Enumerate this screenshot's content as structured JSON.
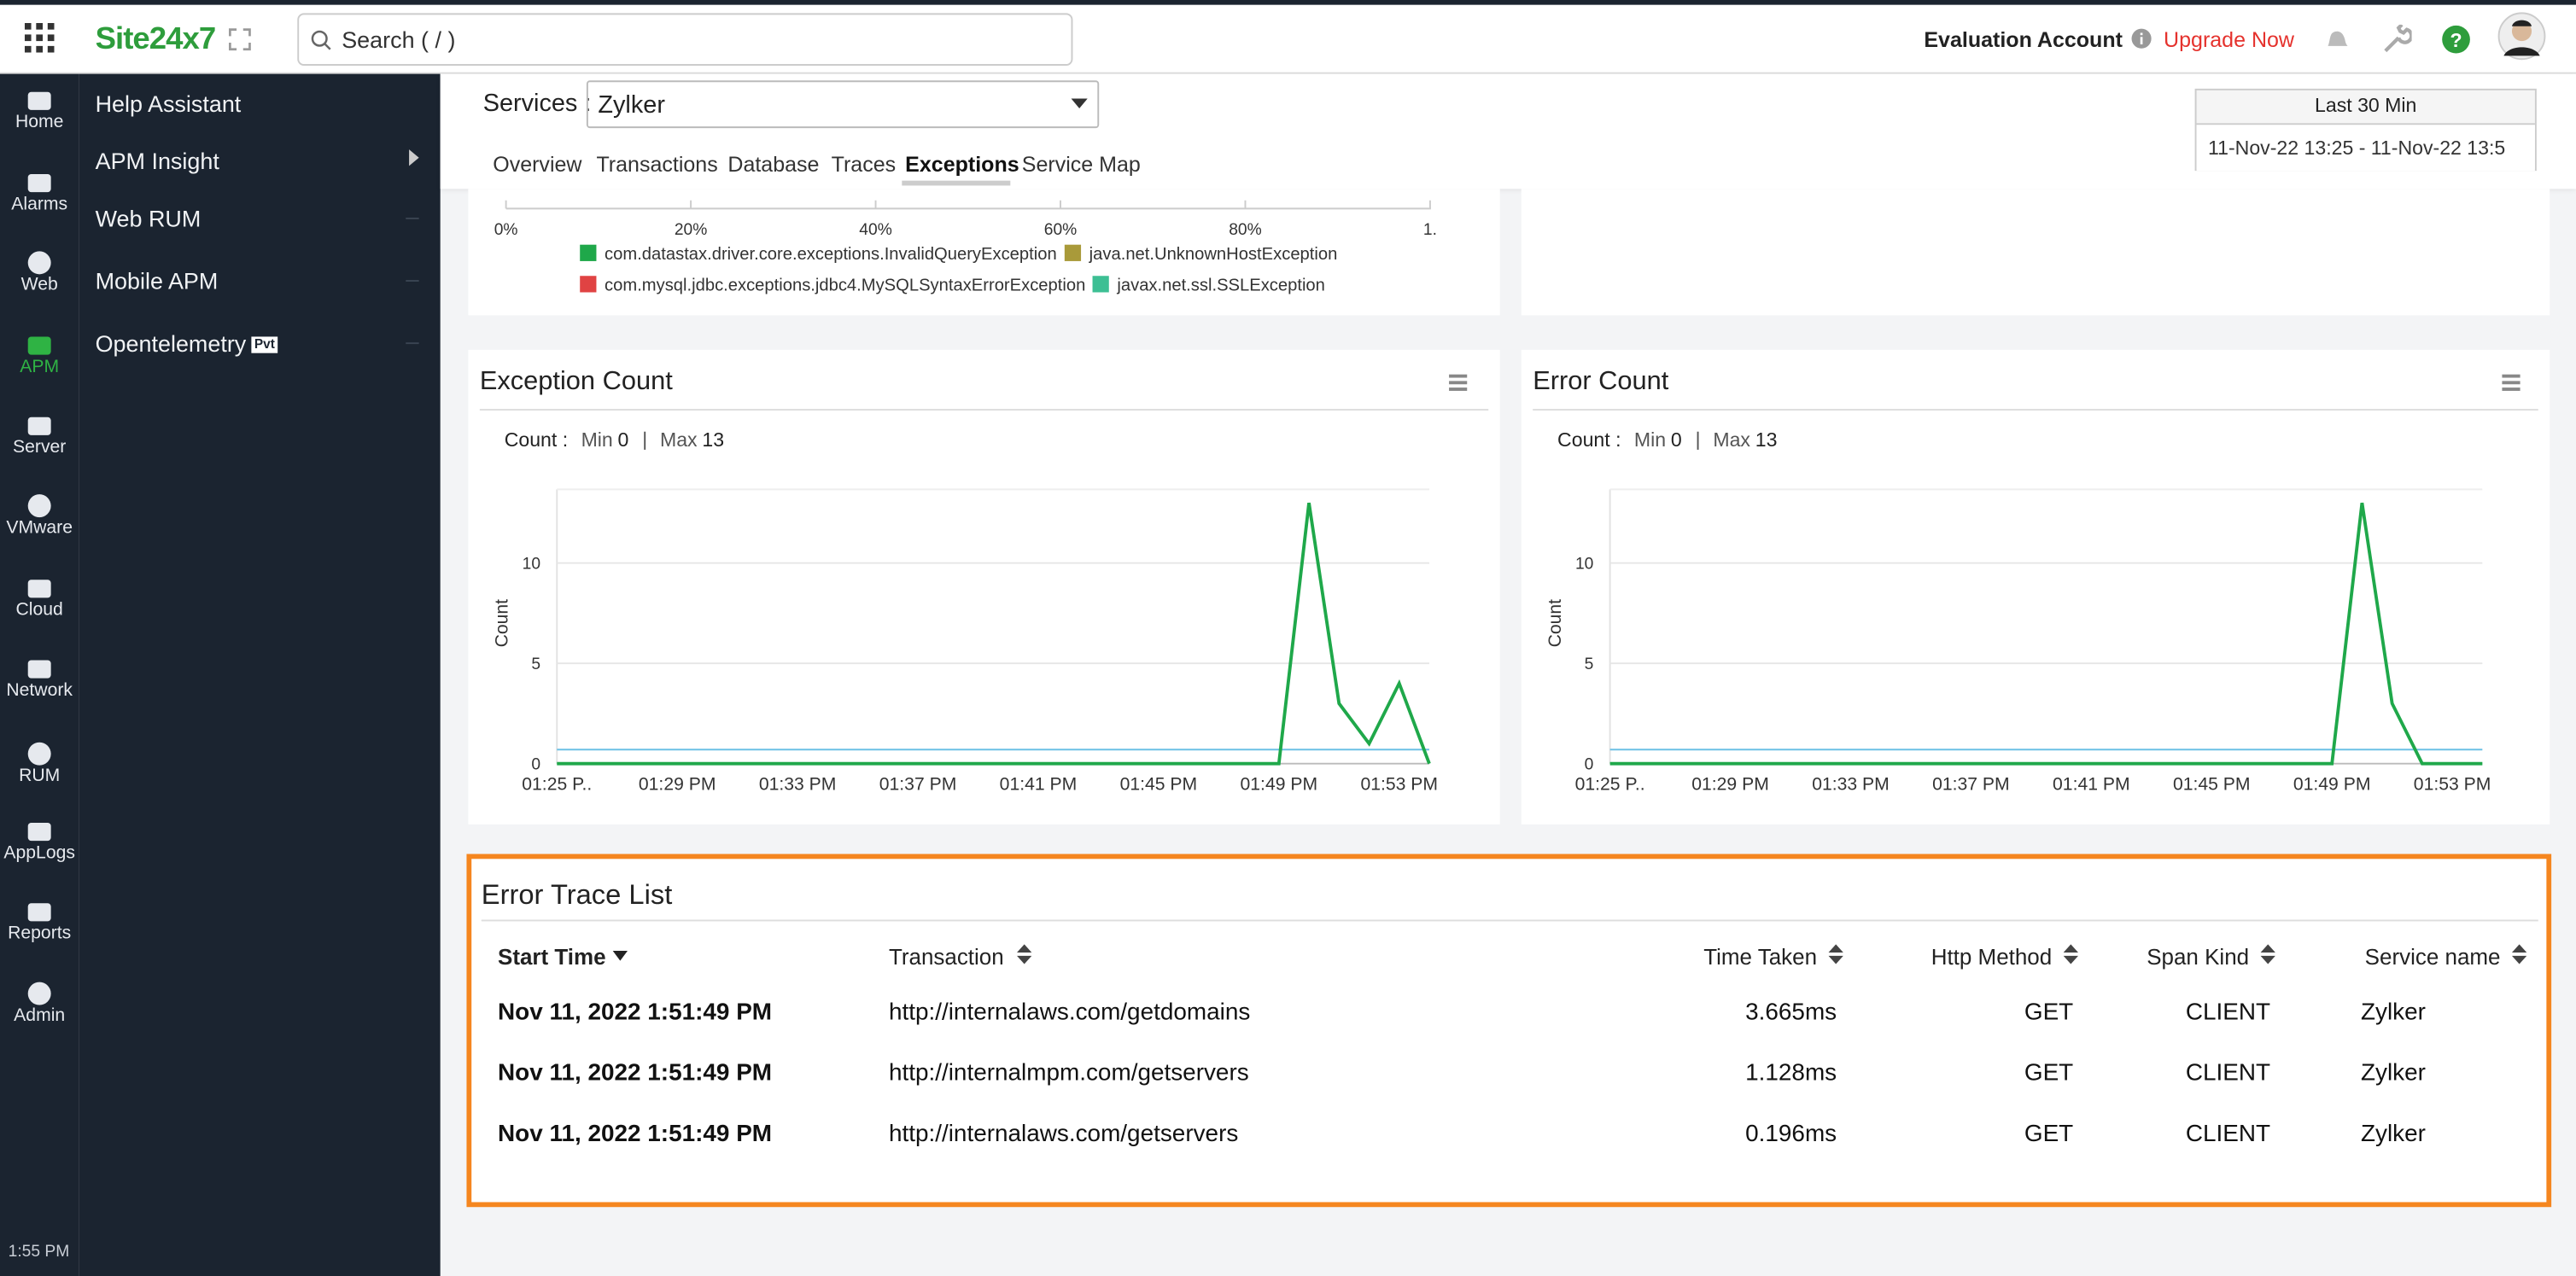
{
  "header": {
    "logo": "Site24x7",
    "search_placeholder": "Search ( / )",
    "account": "Evaluation Account",
    "upgrade": "Upgrade Now"
  },
  "sidebar": {
    "items": [
      "Home",
      "Alarms",
      "Web",
      "APM",
      "Server",
      "VMware",
      "Cloud",
      "Network",
      "RUM",
      "AppLogs",
      "Reports",
      "Admin"
    ],
    "active": "APM",
    "time": "1:55 PM"
  },
  "submenu": {
    "items": [
      "Help Assistant",
      "APM Insight",
      "Web RUM",
      "Mobile APM",
      "Opentelemetry"
    ],
    "badge": "Pvt"
  },
  "services": {
    "label": "Services :",
    "selected": "Zylker"
  },
  "tabs": {
    "items": [
      "Overview",
      "Transactions",
      "Database",
      "Traces",
      "Exceptions",
      "Service Map"
    ],
    "active": "Exceptions"
  },
  "time_range": {
    "label": "Last 30 Min",
    "value": "11-Nov-22 13:25 - 11-Nov-22 13:5"
  },
  "top_panel": {
    "xticks": [
      "0%",
      "20%",
      "40%",
      "60%",
      "80%",
      "1."
    ],
    "legend": [
      {
        "name": "com.datastax.driver.core.exceptions.InvalidQueryException",
        "color": "#1fa84a"
      },
      {
        "name": "java.net.UnknownHostException",
        "color": "#a99a3a"
      },
      {
        "name": "com.mysql.jdbc.exceptions.jdbc4.MySQLSyntaxErrorException",
        "color": "#e04343"
      },
      {
        "name": "javax.net.ssl.SSLException",
        "color": "#3dbf94"
      }
    ]
  },
  "chart_data": [
    {
      "type": "line",
      "title": "Exception Count",
      "stats": {
        "label": "Count :",
        "min_label": "Min",
        "min": 0,
        "max_label": "Max",
        "max": 13
      },
      "y_label": "Count",
      "categories": [
        "01:25 P..",
        null,
        null,
        null,
        "01:29 PM",
        null,
        null,
        null,
        "01:33 PM",
        null,
        null,
        null,
        "01:37 PM",
        null,
        null,
        null,
        "01:41 PM",
        null,
        null,
        null,
        "01:45 PM",
        null,
        null,
        null,
        "01:49 PM",
        null,
        null,
        null,
        "01:53 PM",
        null
      ],
      "series": [
        {
          "color": "#6cc0e5",
          "values": [
            0.7,
            0.7,
            0.7,
            0.7,
            0.7,
            0.7,
            0.7,
            0.7,
            0.7,
            0.7,
            0.7,
            0.7,
            0.7,
            0.7,
            0.7,
            0.7,
            0.7,
            0.7,
            0.7,
            0.7,
            0.7,
            0.7,
            0.7,
            0.7,
            0.7,
            0.7,
            0.7,
            0.7,
            0.7,
            0.7
          ]
        },
        {
          "color": "#1fa84a",
          "values": [
            0,
            0,
            0,
            0,
            0,
            0,
            0,
            0,
            0,
            0,
            0,
            0,
            0,
            0,
            0,
            0,
            0,
            0,
            0,
            0,
            0,
            0,
            0,
            0,
            0,
            13,
            3,
            1,
            4,
            0
          ]
        }
      ],
      "ylim": [
        0,
        14
      ],
      "yticks": [
        0,
        5,
        10
      ],
      "grid": true
    },
    {
      "type": "line",
      "title": "Error Count",
      "stats": {
        "label": "Count :",
        "min_label": "Min",
        "min": 0,
        "max_label": "Max",
        "max": 13
      },
      "y_label": "Count",
      "categories": [
        "01:25 P..",
        null,
        null,
        null,
        "01:29 PM",
        null,
        null,
        null,
        "01:33 PM",
        null,
        null,
        null,
        "01:37 PM",
        null,
        null,
        null,
        "01:41 PM",
        null,
        null,
        null,
        "01:45 PM",
        null,
        null,
        null,
        "01:49 PM",
        null,
        null,
        null,
        "01:53 PM",
        null
      ],
      "series": [
        {
          "color": "#6cc0e5",
          "values": [
            0.7,
            0.7,
            0.7,
            0.7,
            0.7,
            0.7,
            0.7,
            0.7,
            0.7,
            0.7,
            0.7,
            0.7,
            0.7,
            0.7,
            0.7,
            0.7,
            0.7,
            0.7,
            0.7,
            0.7,
            0.7,
            0.7,
            0.7,
            0.7,
            0.7,
            0.7,
            0.7,
            0.7,
            0.7,
            0.7
          ]
        },
        {
          "color": "#1fa84a",
          "values": [
            0,
            0,
            0,
            0,
            0,
            0,
            0,
            0,
            0,
            0,
            0,
            0,
            0,
            0,
            0,
            0,
            0,
            0,
            0,
            0,
            0,
            0,
            0,
            0,
            0,
            13,
            3,
            0,
            0,
            0
          ]
        }
      ],
      "ylim": [
        0,
        14
      ],
      "yticks": [
        0,
        5,
        10
      ],
      "grid": true
    }
  ],
  "error_trace_list": {
    "title": "Error Trace List",
    "columns": [
      "Start Time",
      "Transaction",
      "Time Taken",
      "Http Method",
      "Span Kind",
      "Service name"
    ],
    "rows": [
      [
        "Nov 11, 2022 1:51:49 PM",
        "http://internalaws.com/getdomains",
        "3.665ms",
        "GET",
        "CLIENT",
        "Zylker"
      ],
      [
        "Nov 11, 2022 1:51:49 PM",
        "http://internalmpm.com/getservers",
        "1.128ms",
        "GET",
        "CLIENT",
        "Zylker"
      ],
      [
        "Nov 11, 2022 1:51:49 PM",
        "http://internalaws.com/getservers",
        "0.196ms",
        "GET",
        "CLIENT",
        "Zylker"
      ]
    ]
  }
}
